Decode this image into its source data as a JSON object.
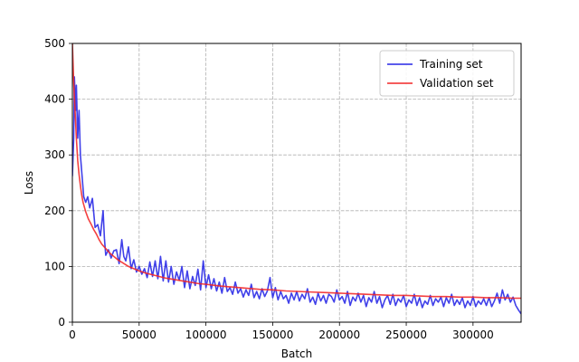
{
  "chart_data": {
    "type": "line",
    "title": "",
    "xlabel": "Batch",
    "ylabel": "Loss",
    "xlim": [
      0,
      336000
    ],
    "ylim": [
      0,
      500
    ],
    "x_ticks": [
      0,
      50000,
      100000,
      150000,
      200000,
      250000,
      300000
    ],
    "x_tick_labels": [
      "0",
      "50000",
      "100000",
      "150000",
      "200000",
      "250000",
      "300000"
    ],
    "y_ticks": [
      0,
      100,
      200,
      300,
      400,
      500
    ],
    "y_tick_labels": [
      "0",
      "100",
      "200",
      "300",
      "400",
      "500"
    ],
    "grid": true,
    "grid_style": "dashed",
    "legend_position": "upper-right",
    "series": [
      {
        "name": "Training set",
        "color": "#2626e6",
        "points": [
          [
            0,
            262
          ],
          [
            1000,
            330
          ],
          [
            1500,
            440
          ],
          [
            2500,
            380
          ],
          [
            3000,
            425
          ],
          [
            4000,
            330
          ],
          [
            5000,
            380
          ],
          [
            6000,
            300
          ],
          [
            7000,
            270
          ],
          [
            8500,
            225
          ],
          [
            10000,
            215
          ],
          [
            11500,
            225
          ],
          [
            13000,
            205
          ],
          [
            15000,
            222
          ],
          [
            17000,
            170
          ],
          [
            19000,
            175
          ],
          [
            21000,
            155
          ],
          [
            23000,
            200
          ],
          [
            24000,
            150
          ],
          [
            25000,
            120
          ],
          [
            27000,
            130
          ],
          [
            29000,
            115
          ],
          [
            31000,
            128
          ],
          [
            33000,
            130
          ],
          [
            35000,
            105
          ],
          [
            37000,
            148
          ],
          [
            38500,
            118
          ],
          [
            40000,
            110
          ],
          [
            42000,
            135
          ],
          [
            44000,
            96
          ],
          [
            46000,
            112
          ],
          [
            48000,
            90
          ],
          [
            50000,
            100
          ],
          [
            52000,
            86
          ],
          [
            54000,
            96
          ],
          [
            56000,
            80
          ],
          [
            58000,
            108
          ],
          [
            60000,
            82
          ],
          [
            62000,
            110
          ],
          [
            64000,
            78
          ],
          [
            66000,
            118
          ],
          [
            68000,
            74
          ],
          [
            70000,
            110
          ],
          [
            72000,
            72
          ],
          [
            74000,
            100
          ],
          [
            76000,
            68
          ],
          [
            78000,
            90
          ],
          [
            80000,
            75
          ],
          [
            82000,
            100
          ],
          [
            84000,
            62
          ],
          [
            86000,
            92
          ],
          [
            88000,
            60
          ],
          [
            90000,
            82
          ],
          [
            92000,
            66
          ],
          [
            94000,
            95
          ],
          [
            96000,
            58
          ],
          [
            98000,
            110
          ],
          [
            100000,
            62
          ],
          [
            102000,
            85
          ],
          [
            104000,
            60
          ],
          [
            106000,
            78
          ],
          [
            108000,
            56
          ],
          [
            110000,
            72
          ],
          [
            112000,
            52
          ],
          [
            114000,
            80
          ],
          [
            116000,
            55
          ],
          [
            118000,
            62
          ],
          [
            120000,
            50
          ],
          [
            122000,
            72
          ],
          [
            124000,
            52
          ],
          [
            126000,
            60
          ],
          [
            128000,
            45
          ],
          [
            130000,
            58
          ],
          [
            132000,
            48
          ],
          [
            134000,
            68
          ],
          [
            136000,
            44
          ],
          [
            138000,
            55
          ],
          [
            140000,
            42
          ],
          [
            142000,
            60
          ],
          [
            144000,
            46
          ],
          [
            146000,
            56
          ],
          [
            148000,
            80
          ],
          [
            150000,
            44
          ],
          [
            152000,
            62
          ],
          [
            154000,
            40
          ],
          [
            156000,
            55
          ],
          [
            158000,
            42
          ],
          [
            160000,
            48
          ],
          [
            162000,
            34
          ],
          [
            164000,
            52
          ],
          [
            166000,
            40
          ],
          [
            168000,
            55
          ],
          [
            170000,
            38
          ],
          [
            172000,
            50
          ],
          [
            174000,
            42
          ],
          [
            176000,
            60
          ],
          [
            178000,
            36
          ],
          [
            180000,
            45
          ],
          [
            182000,
            32
          ],
          [
            184000,
            52
          ],
          [
            186000,
            38
          ],
          [
            188000,
            48
          ],
          [
            190000,
            34
          ],
          [
            192000,
            50
          ],
          [
            194000,
            46
          ],
          [
            196000,
            36
          ],
          [
            198000,
            58
          ],
          [
            200000,
            40
          ],
          [
            202000,
            46
          ],
          [
            204000,
            34
          ],
          [
            206000,
            55
          ],
          [
            208000,
            30
          ],
          [
            210000,
            45
          ],
          [
            212000,
            38
          ],
          [
            214000,
            52
          ],
          [
            216000,
            36
          ],
          [
            218000,
            48
          ],
          [
            220000,
            28
          ],
          [
            222000,
            44
          ],
          [
            224000,
            36
          ],
          [
            226000,
            55
          ],
          [
            228000,
            34
          ],
          [
            230000,
            46
          ],
          [
            232000,
            26
          ],
          [
            234000,
            40
          ],
          [
            236000,
            48
          ],
          [
            238000,
            32
          ],
          [
            240000,
            50
          ],
          [
            242000,
            30
          ],
          [
            244000,
            42
          ],
          [
            246000,
            36
          ],
          [
            248000,
            48
          ],
          [
            250000,
            28
          ],
          [
            252000,
            40
          ],
          [
            254000,
            34
          ],
          [
            256000,
            50
          ],
          [
            258000,
            30
          ],
          [
            260000,
            44
          ],
          [
            262000,
            26
          ],
          [
            264000,
            38
          ],
          [
            266000,
            32
          ],
          [
            268000,
            48
          ],
          [
            270000,
            30
          ],
          [
            272000,
            42
          ],
          [
            274000,
            36
          ],
          [
            276000,
            45
          ],
          [
            278000,
            28
          ],
          [
            280000,
            44
          ],
          [
            282000,
            34
          ],
          [
            284000,
            50
          ],
          [
            286000,
            30
          ],
          [
            288000,
            40
          ],
          [
            290000,
            32
          ],
          [
            292000,
            44
          ],
          [
            294000,
            26
          ],
          [
            296000,
            38
          ],
          [
            298000,
            30
          ],
          [
            300000,
            46
          ],
          [
            302000,
            28
          ],
          [
            304000,
            38
          ],
          [
            306000,
            32
          ],
          [
            308000,
            42
          ],
          [
            310000,
            30
          ],
          [
            312000,
            44
          ],
          [
            314000,
            28
          ],
          [
            316000,
            38
          ],
          [
            318000,
            52
          ],
          [
            320000,
            34
          ],
          [
            322000,
            58
          ],
          [
            324000,
            40
          ],
          [
            326000,
            50
          ],
          [
            328000,
            36
          ],
          [
            330000,
            45
          ],
          [
            332000,
            30
          ],
          [
            334000,
            22
          ],
          [
            336000,
            15
          ]
        ]
      },
      {
        "name": "Validation set",
        "color": "#f22626",
        "points": [
          [
            0,
            500
          ],
          [
            1000,
            430
          ],
          [
            2000,
            380
          ],
          [
            3000,
            330
          ],
          [
            4000,
            290
          ],
          [
            5000,
            265
          ],
          [
            6000,
            245
          ],
          [
            7000,
            228
          ],
          [
            8000,
            215
          ],
          [
            10000,
            198
          ],
          [
            12000,
            185
          ],
          [
            14000,
            176
          ],
          [
            16000,
            166
          ],
          [
            18000,
            158
          ],
          [
            20000,
            148
          ],
          [
            22000,
            140
          ],
          [
            25000,
            132
          ],
          [
            28000,
            124
          ],
          [
            31000,
            118
          ],
          [
            34000,
            112
          ],
          [
            38000,
            106
          ],
          [
            42000,
            100
          ],
          [
            46000,
            96
          ],
          [
            50000,
            92
          ],
          [
            55000,
            88
          ],
          [
            60000,
            85
          ],
          [
            65000,
            82
          ],
          [
            70000,
            79
          ],
          [
            75000,
            77
          ],
          [
            80000,
            75
          ],
          [
            85000,
            73
          ],
          [
            90000,
            71
          ],
          [
            95000,
            69
          ],
          [
            100000,
            68
          ],
          [
            110000,
            65
          ],
          [
            120000,
            63
          ],
          [
            130000,
            61
          ],
          [
            140000,
            59
          ],
          [
            150000,
            58
          ],
          [
            160000,
            56
          ],
          [
            170000,
            55
          ],
          [
            180000,
            54
          ],
          [
            190000,
            53
          ],
          [
            200000,
            52
          ],
          [
            210000,
            51
          ],
          [
            220000,
            50
          ],
          [
            230000,
            49
          ],
          [
            240000,
            48
          ],
          [
            250000,
            48
          ],
          [
            260000,
            47
          ],
          [
            270000,
            46
          ],
          [
            280000,
            46
          ],
          [
            290000,
            45
          ],
          [
            300000,
            45
          ],
          [
            310000,
            44
          ],
          [
            320000,
            44
          ],
          [
            330000,
            43
          ],
          [
            336000,
            43
          ]
        ]
      }
    ]
  }
}
